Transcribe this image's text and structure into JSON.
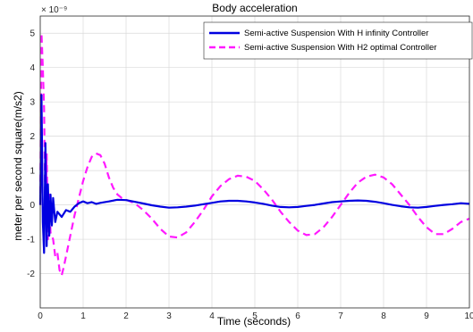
{
  "chart_data": {
    "type": "line",
    "title": "Body acceleration",
    "xlabel": "Time (seconds)",
    "ylabel": "meter per second square(m/s2)",
    "y_exponent_label": "× 10⁻⁹",
    "xlim": [
      0,
      10
    ],
    "ylim": [
      -3,
      5.5
    ],
    "xticks": [
      0,
      1,
      2,
      3,
      4,
      5,
      6,
      7,
      8,
      9,
      10
    ],
    "yticks": [
      -2,
      -1,
      0,
      1,
      2,
      3,
      4,
      5
    ],
    "grid": true,
    "legend_position": "top-right",
    "colors": {
      "hinf": "#0000e0",
      "h2": "#ff19ff",
      "grid": "#d9d9d9",
      "axes": "#262626"
    },
    "series": [
      {
        "name": "Semi-active Suspension With H infinity  Controller",
        "style": "solid",
        "x": [
          0,
          0.03,
          0.06,
          0.09,
          0.12,
          0.15,
          0.18,
          0.21,
          0.24,
          0.27,
          0.3,
          0.35,
          0.4,
          0.5,
          0.6,
          0.7,
          0.8,
          0.9,
          1.0,
          1.1,
          1.2,
          1.3,
          1.4,
          1.6,
          1.8,
          2.0,
          2.2,
          2.4,
          2.6,
          2.8,
          3.0,
          3.2,
          3.4,
          3.6,
          3.8,
          4.0,
          4.2,
          4.4,
          4.6,
          4.8,
          5.0,
          5.2,
          5.4,
          5.6,
          5.8,
          6.0,
          6.2,
          6.4,
          6.6,
          6.8,
          7.0,
          7.2,
          7.4,
          7.6,
          7.8,
          8.0,
          8.2,
          8.4,
          8.6,
          8.8,
          9.0,
          9.2,
          9.4,
          9.6,
          9.8,
          10.0
        ],
        "y": [
          0,
          3.2,
          -0.5,
          -1.4,
          1.8,
          -1.2,
          0.6,
          -0.9,
          0.3,
          -0.6,
          0.2,
          -0.5,
          -0.2,
          -0.35,
          -0.15,
          -0.2,
          -0.05,
          0.05,
          0.1,
          0.05,
          0.08,
          0.03,
          0.06,
          0.1,
          0.15,
          0.14,
          0.09,
          0.04,
          -0.01,
          -0.05,
          -0.08,
          -0.07,
          -0.05,
          -0.02,
          0.02,
          0.06,
          0.1,
          0.12,
          0.12,
          0.1,
          0.07,
          0.03,
          -0.02,
          -0.06,
          -0.07,
          -0.06,
          -0.03,
          0.0,
          0.04,
          0.08,
          0.1,
          0.12,
          0.13,
          0.12,
          0.09,
          0.05,
          0.0,
          -0.04,
          -0.07,
          -0.08,
          -0.06,
          -0.03,
          0.0,
          0.02,
          0.05,
          0.03
        ]
      },
      {
        "name": "Semi-active Suspension With H2 optimal Controller",
        "style": "dashed",
        "x": [
          0,
          0.03,
          0.06,
          0.09,
          0.12,
          0.15,
          0.18,
          0.21,
          0.24,
          0.3,
          0.35,
          0.4,
          0.45,
          0.5,
          0.55,
          0.6,
          0.7,
          0.8,
          0.9,
          1.0,
          1.1,
          1.2,
          1.3,
          1.4,
          1.5,
          1.6,
          1.7,
          1.8,
          1.9,
          2.0,
          2.2,
          2.4,
          2.6,
          2.8,
          3.0,
          3.2,
          3.4,
          3.6,
          3.8,
          4.0,
          4.2,
          4.4,
          4.6,
          4.8,
          5.0,
          5.2,
          5.4,
          5.6,
          5.8,
          6.0,
          6.2,
          6.4,
          6.6,
          6.8,
          7.0,
          7.2,
          7.4,
          7.6,
          7.8,
          8.0,
          8.2,
          8.4,
          8.6,
          8.8,
          9.0,
          9.2,
          9.4,
          9.6,
          9.8,
          10.0
        ],
        "y": [
          0,
          5.0,
          4.0,
          2.8,
          -0.5,
          1.5,
          -1.0,
          0.3,
          -0.8,
          -1.0,
          -1.5,
          -1.4,
          -1.9,
          -2.05,
          -1.8,
          -1.5,
          -0.9,
          -0.3,
          0.2,
          0.7,
          1.1,
          1.4,
          1.5,
          1.45,
          1.2,
          0.8,
          0.5,
          0.3,
          0.2,
          0.15,
          0.05,
          -0.15,
          -0.4,
          -0.7,
          -0.92,
          -0.95,
          -0.8,
          -0.5,
          -0.15,
          0.25,
          0.55,
          0.75,
          0.85,
          0.82,
          0.7,
          0.45,
          0.15,
          -0.2,
          -0.5,
          -0.75,
          -0.88,
          -0.85,
          -0.65,
          -0.35,
          0.0,
          0.35,
          0.65,
          0.82,
          0.88,
          0.8,
          0.6,
          0.3,
          0.0,
          -0.35,
          -0.65,
          -0.85,
          -0.85,
          -0.7,
          -0.5,
          -0.4
        ]
      }
    ]
  }
}
